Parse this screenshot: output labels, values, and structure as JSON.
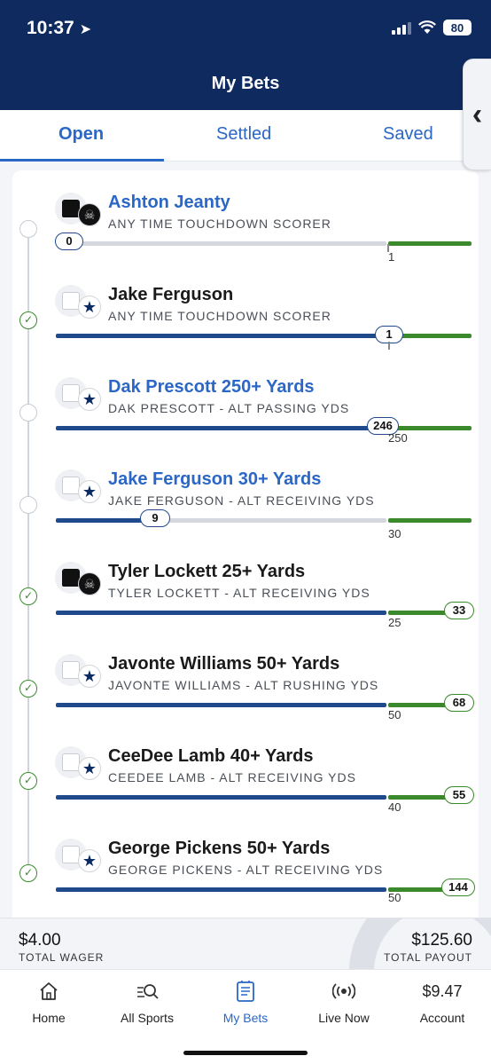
{
  "status_bar": {
    "time": "10:37",
    "battery": "80"
  },
  "header": {
    "title": "My Bets"
  },
  "tabs": [
    {
      "label": "Open",
      "active": true
    },
    {
      "label": "Settled",
      "active": false
    },
    {
      "label": "Saved",
      "active": false
    }
  ],
  "legs": [
    {
      "title": "Ashton Jeanty",
      "subtitle": "ANY TIME TOUCHDOWN SCORER",
      "status": "pending",
      "team": "raiders",
      "jersey": "black",
      "current": "0",
      "target": "1"
    },
    {
      "title": "Jake Ferguson",
      "subtitle": "ANY TIME TOUCHDOWN SCORER",
      "status": "won",
      "team": "cowboys",
      "jersey": "white",
      "current": "1",
      "target": "1"
    },
    {
      "title": "Dak Prescott 250+ Yards",
      "subtitle": "DAK PRESCOTT - ALT PASSING YDS",
      "status": "pending",
      "team": "cowboys",
      "jersey": "white",
      "current": "246",
      "target": "250"
    },
    {
      "title": "Jake Ferguson 30+ Yards",
      "subtitle": "JAKE FERGUSON - ALT RECEIVING YDS",
      "status": "pending",
      "team": "cowboys",
      "jersey": "white",
      "current": "9",
      "target": "30"
    },
    {
      "title": "Tyler Lockett 25+ Yards",
      "subtitle": "TYLER LOCKETT - ALT RECEIVING YDS",
      "status": "won",
      "team": "raiders",
      "jersey": "black",
      "current": "33",
      "target": "25"
    },
    {
      "title": "Javonte Williams 50+ Yards",
      "subtitle": "JAVONTE WILLIAMS - ALT RUSHING YDS",
      "status": "won",
      "team": "cowboys",
      "jersey": "white",
      "current": "68",
      "target": "50"
    },
    {
      "title": "CeeDee Lamb 40+ Yards",
      "subtitle": "CEEDEE LAMB - ALT RECEIVING YDS",
      "status": "won",
      "team": "cowboys",
      "jersey": "white",
      "current": "55",
      "target": "40"
    },
    {
      "title": "George Pickens 50+ Yards",
      "subtitle": "GEORGE PICKENS - ALT RECEIVING YDS",
      "status": "won",
      "team": "cowboys",
      "jersey": "white",
      "current": "144",
      "target": "50"
    }
  ],
  "totals": {
    "wager_amount": "$4.00",
    "wager_label": "TOTAL WAGER",
    "payout_amount": "$125.60",
    "payout_label": "TOTAL PAYOUT"
  },
  "nav": {
    "home": "Home",
    "all_sports": "All Sports",
    "my_bets": "My Bets",
    "live_now": "Live Now",
    "account_balance": "$9.47",
    "account": "Account"
  },
  "colors": {
    "header": "#0f2a5f",
    "accent": "#2a67c6",
    "progress": "#1f4a8c",
    "success": "#3a8a2c"
  }
}
